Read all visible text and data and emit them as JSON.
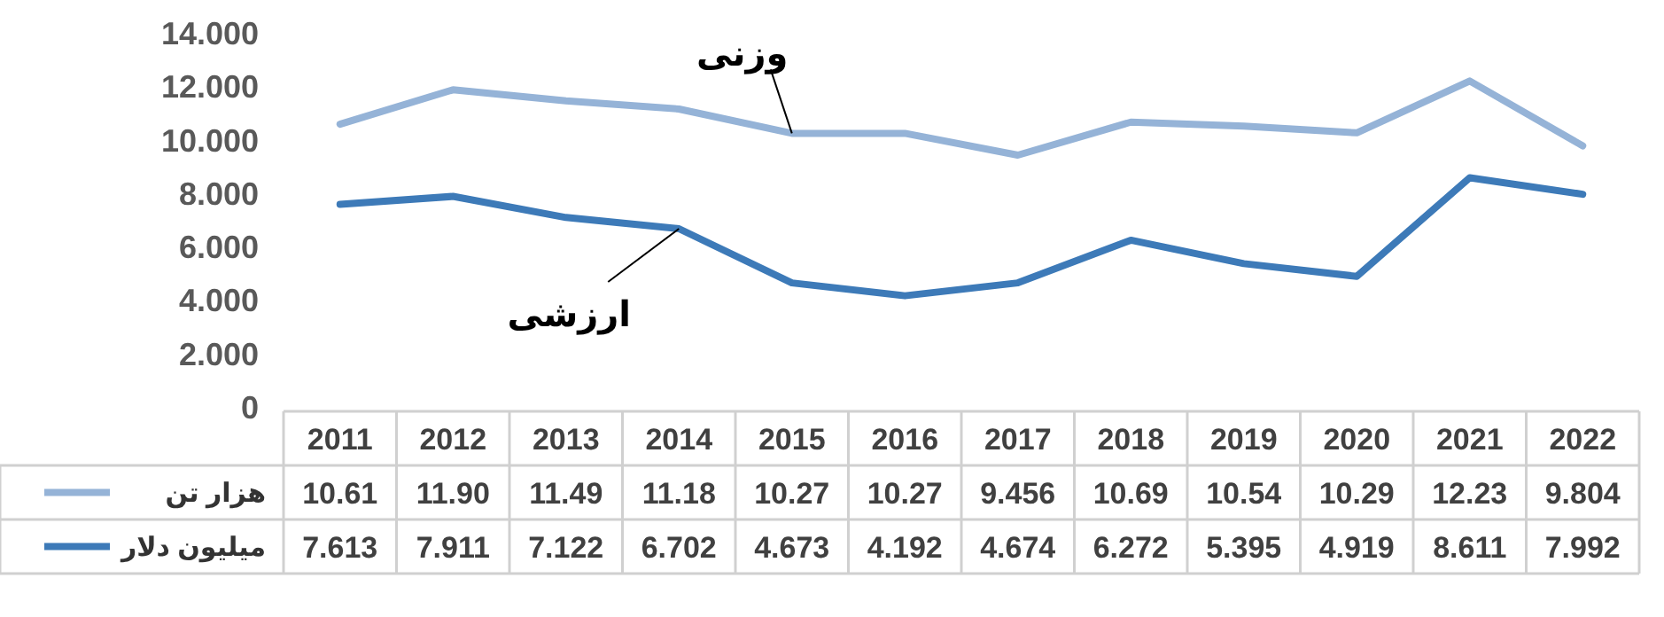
{
  "chart_data": {
    "type": "line",
    "categories": [
      "2011",
      "2012",
      "2013",
      "2014",
      "2015",
      "2016",
      "2017",
      "2018",
      "2019",
      "2020",
      "2021",
      "2022"
    ],
    "series": [
      {
        "name": "هزار تن",
        "color": "#95b3d7",
        "values": [
          10.61,
          11.9,
          11.49,
          11.18,
          10.27,
          10.27,
          9.456,
          10.69,
          10.54,
          10.29,
          12.23,
          9.804
        ],
        "value_labels": [
          "10.61",
          "11.90",
          "11.49",
          "11.18",
          "10.27",
          "10.27",
          "9.456",
          "10.69",
          "10.54",
          "10.29",
          "12.23",
          "9.804"
        ]
      },
      {
        "name": "میلیون دلار",
        "color": "#3d7ab8",
        "values": [
          7.613,
          7.911,
          7.122,
          6.702,
          4.673,
          4.192,
          4.674,
          6.272,
          5.395,
          4.919,
          8.611,
          7.992
        ],
        "value_labels": [
          "7.613",
          "7.911",
          "7.122",
          "6.702",
          "4.673",
          "4.192",
          "4.674",
          "6.272",
          "5.395",
          "4.919",
          "8.611",
          "7.992"
        ]
      }
    ],
    "legend": "bottom left",
    "ylim": [
      0,
      14
    ],
    "yticks": [
      0,
      {
        "value": 2,
        "label": "2.000"
      },
      {
        "value": 4,
        "label": "4.000"
      },
      {
        "value": 6,
        "label": "6.000"
      },
      {
        "value": 8,
        "label": "8.000"
      },
      {
        "value": 10,
        "label": "10.000"
      },
      {
        "value": 12,
        "label": "12.000"
      },
      {
        "value": 14,
        "label": "14.000"
      }
    ],
    "annotations": [
      {
        "text": "وزنی",
        "x": "2015",
        "y": 10.27
      },
      {
        "text": "ارزشی",
        "x": "2014",
        "y": 6.702
      }
    ]
  }
}
